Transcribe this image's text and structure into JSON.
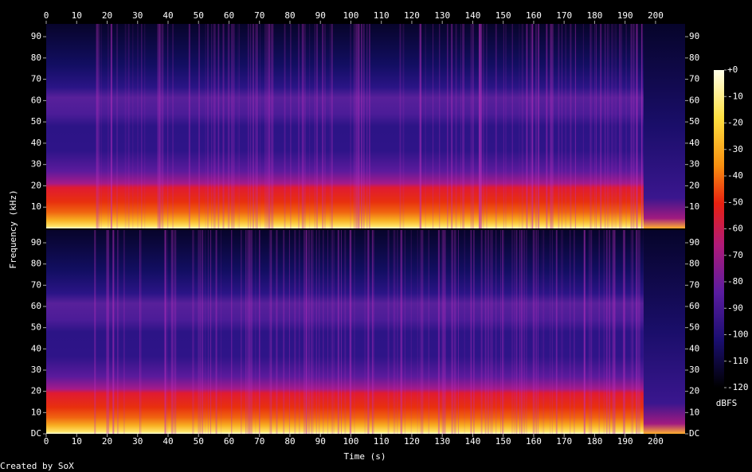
{
  "chart_data": {
    "type": "spectrogram",
    "x_label": "Time (s)",
    "y_label": "Frequency (kHz)",
    "xlim": [
      0,
      209.7
    ],
    "xticks": [
      0,
      10,
      20,
      30,
      40,
      50,
      60,
      70,
      80,
      90,
      100,
      110,
      120,
      130,
      140,
      150,
      160,
      170,
      180,
      190,
      200
    ],
    "channels": [
      {
        "ylim": [
          0,
          96
        ],
        "yticks": [
          10,
          20,
          30,
          40,
          50,
          60,
          70,
          80,
          90
        ]
      },
      {
        "ylim": [
          0,
          96
        ],
        "yticks": [
          {
            "value": 0,
            "label": "DC"
          },
          10,
          20,
          30,
          40,
          50,
          60,
          70,
          80,
          90
        ]
      }
    ],
    "colorbar": {
      "label": "dBFS",
      "lim": [
        -120,
        0
      ],
      "ticks": [
        {
          "value": 0,
          "label": "+0"
        },
        -10,
        -20,
        -30,
        -40,
        -50,
        -60,
        -70,
        -80,
        -90,
        -100,
        -110,
        -120
      ]
    }
  },
  "footer": "Created by SoX"
}
